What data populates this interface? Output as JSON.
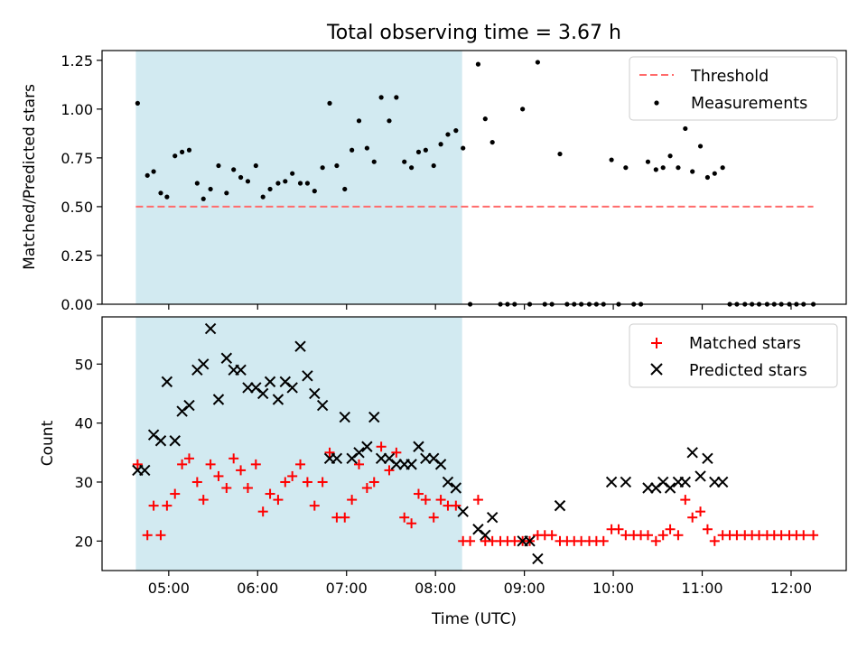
{
  "title": "Total observing time = 3.67 h",
  "x_axis": {
    "label": "Time (UTC)",
    "range_hours": [
      4.25,
      12.62
    ],
    "tick_labels": [
      "05:00",
      "06:00",
      "07:00",
      "08:00",
      "09:00",
      "10:00",
      "11:00",
      "12:00"
    ]
  },
  "highlight": {
    "start_hours": 4.63,
    "end_hours": 8.3,
    "color": "#add8e6"
  },
  "colors": {
    "threshold": "#ff6b6b",
    "measurements": "#000000",
    "matched": "#ff0000",
    "predicted": "#000000"
  },
  "chart_data": [
    {
      "type": "scatter",
      "ylabel": "Matched/Predicted stars",
      "ylim": [
        0,
        1.3
      ],
      "yticks": [
        "0.00",
        "0.25",
        "0.50",
        "0.75",
        "1.00",
        "1.25"
      ],
      "legend": {
        "placement": "top-right",
        "entries": [
          "Threshold",
          "Measurements"
        ]
      },
      "threshold": {
        "name": "Threshold",
        "value": 0.5,
        "x_range": [
          4.63,
          12.25
        ]
      },
      "series": [
        {
          "name": "Measurements",
          "points": [
            [
              4.65,
              1.03
            ],
            [
              4.76,
              0.66
            ],
            [
              4.83,
              0.68
            ],
            [
              4.91,
              0.57
            ],
            [
              4.98,
              0.55
            ],
            [
              5.07,
              0.76
            ],
            [
              5.15,
              0.78
            ],
            [
              5.23,
              0.79
            ],
            [
              5.32,
              0.62
            ],
            [
              5.39,
              0.54
            ],
            [
              5.47,
              0.59
            ],
            [
              5.56,
              0.71
            ],
            [
              5.65,
              0.57
            ],
            [
              5.73,
              0.69
            ],
            [
              5.81,
              0.65
            ],
            [
              5.89,
              0.63
            ],
            [
              5.98,
              0.71
            ],
            [
              6.06,
              0.55
            ],
            [
              6.14,
              0.59
            ],
            [
              6.23,
              0.62
            ],
            [
              6.31,
              0.63
            ],
            [
              6.39,
              0.67
            ],
            [
              6.48,
              0.62
            ],
            [
              6.56,
              0.62
            ],
            [
              6.64,
              0.58
            ],
            [
              6.73,
              0.7
            ],
            [
              6.81,
              1.03
            ],
            [
              6.89,
              0.71
            ],
            [
              6.98,
              0.59
            ],
            [
              7.06,
              0.79
            ],
            [
              7.14,
              0.94
            ],
            [
              7.23,
              0.8
            ],
            [
              7.31,
              0.73
            ],
            [
              7.39,
              1.06
            ],
            [
              7.48,
              0.94
            ],
            [
              7.56,
              1.06
            ],
            [
              7.65,
              0.73
            ],
            [
              7.73,
              0.7
            ],
            [
              7.81,
              0.78
            ],
            [
              7.89,
              0.79
            ],
            [
              7.98,
              0.71
            ],
            [
              8.06,
              0.82
            ],
            [
              8.14,
              0.87
            ],
            [
              8.23,
              0.89
            ],
            [
              8.31,
              0.8
            ],
            [
              8.39,
              0.0
            ],
            [
              8.48,
              1.23
            ],
            [
              8.56,
              0.95
            ],
            [
              8.64,
              0.83
            ],
            [
              8.73,
              0.0
            ],
            [
              8.81,
              0.0
            ],
            [
              8.89,
              0.0
            ],
            [
              8.98,
              1.0
            ],
            [
              9.06,
              0.0
            ],
            [
              9.15,
              1.24
            ],
            [
              9.23,
              0.0
            ],
            [
              9.31,
              0.0
            ],
            [
              9.4,
              0.77
            ],
            [
              9.48,
              0.0
            ],
            [
              9.56,
              0.0
            ],
            [
              9.64,
              0.0
            ],
            [
              9.73,
              0.0
            ],
            [
              9.81,
              0.0
            ],
            [
              9.89,
              0.0
            ],
            [
              9.98,
              0.74
            ],
            [
              10.06,
              0.0
            ],
            [
              10.14,
              0.7
            ],
            [
              10.23,
              0.0
            ],
            [
              10.31,
              0.0
            ],
            [
              10.39,
              0.73
            ],
            [
              10.48,
              0.69
            ],
            [
              10.56,
              0.7
            ],
            [
              10.64,
              0.76
            ],
            [
              10.73,
              0.7
            ],
            [
              10.81,
              0.9
            ],
            [
              10.89,
              0.68
            ],
            [
              10.98,
              0.81
            ],
            [
              11.06,
              0.65
            ],
            [
              11.14,
              0.67
            ],
            [
              11.23,
              0.7
            ],
            [
              11.31,
              0.0
            ],
            [
              11.39,
              0.0
            ],
            [
              11.48,
              0.0
            ],
            [
              11.56,
              0.0
            ],
            [
              11.64,
              0.0
            ],
            [
              11.73,
              0.0
            ],
            [
              11.81,
              0.0
            ],
            [
              11.89,
              0.0
            ],
            [
              11.98,
              0.0
            ],
            [
              12.06,
              0.0
            ],
            [
              12.14,
              0.0
            ],
            [
              12.25,
              0.0
            ]
          ]
        }
      ]
    },
    {
      "type": "scatter",
      "ylabel": "Count",
      "ylim": [
        15,
        58
      ],
      "yticks": [
        "20",
        "30",
        "40",
        "50"
      ],
      "legend": {
        "placement": "top-right",
        "entries": [
          "Matched stars",
          "Predicted stars"
        ]
      },
      "series": [
        {
          "name": "Matched stars",
          "marker": "plus",
          "points": [
            [
              4.65,
              33
            ],
            [
              4.76,
              21
            ],
            [
              4.83,
              26
            ],
            [
              4.91,
              21
            ],
            [
              4.98,
              26
            ],
            [
              5.07,
              28
            ],
            [
              5.15,
              33
            ],
            [
              5.23,
              34
            ],
            [
              5.32,
              30
            ],
            [
              5.39,
              27
            ],
            [
              5.47,
              33
            ],
            [
              5.56,
              31
            ],
            [
              5.65,
              29
            ],
            [
              5.73,
              34
            ],
            [
              5.81,
              32
            ],
            [
              5.89,
              29
            ],
            [
              5.98,
              33
            ],
            [
              6.06,
              25
            ],
            [
              6.14,
              28
            ],
            [
              6.23,
              27
            ],
            [
              6.31,
              30
            ],
            [
              6.39,
              31
            ],
            [
              6.48,
              33
            ],
            [
              6.56,
              30
            ],
            [
              6.64,
              26
            ],
            [
              6.73,
              30
            ],
            [
              6.81,
              35
            ],
            [
              6.89,
              24
            ],
            [
              6.98,
              24
            ],
            [
              7.06,
              27
            ],
            [
              7.14,
              33
            ],
            [
              7.23,
              29
            ],
            [
              7.31,
              30
            ],
            [
              7.39,
              36
            ],
            [
              7.48,
              32
            ],
            [
              7.56,
              35
            ],
            [
              7.65,
              24
            ],
            [
              7.73,
              23
            ],
            [
              7.81,
              28
            ],
            [
              7.89,
              27
            ],
            [
              7.98,
              24
            ],
            [
              8.06,
              27
            ],
            [
              8.14,
              26
            ],
            [
              8.23,
              26
            ],
            [
              8.31,
              20
            ],
            [
              8.39,
              20
            ],
            [
              8.48,
              27
            ],
            [
              8.56,
              20
            ],
            [
              8.64,
              20
            ],
            [
              8.73,
              20
            ],
            [
              8.81,
              20
            ],
            [
              8.89,
              20
            ],
            [
              8.98,
              20
            ],
            [
              9.06,
              20
            ],
            [
              9.15,
              21
            ],
            [
              9.23,
              21
            ],
            [
              9.31,
              21
            ],
            [
              9.4,
              20
            ],
            [
              9.48,
              20
            ],
            [
              9.56,
              20
            ],
            [
              9.64,
              20
            ],
            [
              9.73,
              20
            ],
            [
              9.81,
              20
            ],
            [
              9.89,
              20
            ],
            [
              9.98,
              22
            ],
            [
              10.06,
              22
            ],
            [
              10.14,
              21
            ],
            [
              10.23,
              21
            ],
            [
              10.31,
              21
            ],
            [
              10.39,
              21
            ],
            [
              10.48,
              20
            ],
            [
              10.56,
              21
            ],
            [
              10.64,
              22
            ],
            [
              10.73,
              21
            ],
            [
              10.81,
              27
            ],
            [
              10.89,
              24
            ],
            [
              10.98,
              25
            ],
            [
              11.06,
              22
            ],
            [
              11.14,
              20
            ],
            [
              11.23,
              21
            ],
            [
              11.31,
              21
            ],
            [
              11.39,
              21
            ],
            [
              11.48,
              21
            ],
            [
              11.56,
              21
            ],
            [
              11.64,
              21
            ],
            [
              11.73,
              21
            ],
            [
              11.81,
              21
            ],
            [
              11.89,
              21
            ],
            [
              11.98,
              21
            ],
            [
              12.06,
              21
            ],
            [
              12.14,
              21
            ],
            [
              12.25,
              21
            ]
          ]
        },
        {
          "name": "Predicted stars",
          "marker": "x",
          "points": [
            [
              4.65,
              32
            ],
            [
              4.73,
              32
            ],
            [
              4.83,
              38
            ],
            [
              4.91,
              37
            ],
            [
              4.98,
              47
            ],
            [
              5.07,
              37
            ],
            [
              5.15,
              42
            ],
            [
              5.23,
              43
            ],
            [
              5.32,
              49
            ],
            [
              5.39,
              50
            ],
            [
              5.47,
              56
            ],
            [
              5.56,
              44
            ],
            [
              5.65,
              51
            ],
            [
              5.73,
              49
            ],
            [
              5.81,
              49
            ],
            [
              5.89,
              46
            ],
            [
              5.98,
              46
            ],
            [
              6.06,
              45
            ],
            [
              6.14,
              47
            ],
            [
              6.23,
              44
            ],
            [
              6.31,
              47
            ],
            [
              6.39,
              46
            ],
            [
              6.48,
              53
            ],
            [
              6.56,
              48
            ],
            [
              6.64,
              45
            ],
            [
              6.73,
              43
            ],
            [
              6.81,
              34
            ],
            [
              6.89,
              34
            ],
            [
              6.98,
              41
            ],
            [
              7.06,
              34
            ],
            [
              7.14,
              35
            ],
            [
              7.23,
              36
            ],
            [
              7.31,
              41
            ],
            [
              7.39,
              34
            ],
            [
              7.48,
              34
            ],
            [
              7.56,
              33
            ],
            [
              7.65,
              33
            ],
            [
              7.73,
              33
            ],
            [
              7.81,
              36
            ],
            [
              7.89,
              34
            ],
            [
              7.98,
              34
            ],
            [
              8.06,
              33
            ],
            [
              8.14,
              30
            ],
            [
              8.23,
              29
            ],
            [
              8.31,
              25
            ],
            [
              8.48,
              22
            ],
            [
              8.56,
              21
            ],
            [
              8.64,
              24
            ],
            [
              8.98,
              20
            ],
            [
              9.06,
              20
            ],
            [
              9.15,
              17
            ],
            [
              9.4,
              26
            ],
            [
              9.98,
              30
            ],
            [
              10.14,
              30
            ],
            [
              10.39,
              29
            ],
            [
              10.48,
              29
            ],
            [
              10.56,
              30
            ],
            [
              10.64,
              29
            ],
            [
              10.73,
              30
            ],
            [
              10.81,
              30
            ],
            [
              10.89,
              35
            ],
            [
              10.98,
              31
            ],
            [
              11.06,
              34
            ],
            [
              11.14,
              30
            ],
            [
              11.23,
              30
            ]
          ]
        }
      ]
    }
  ]
}
